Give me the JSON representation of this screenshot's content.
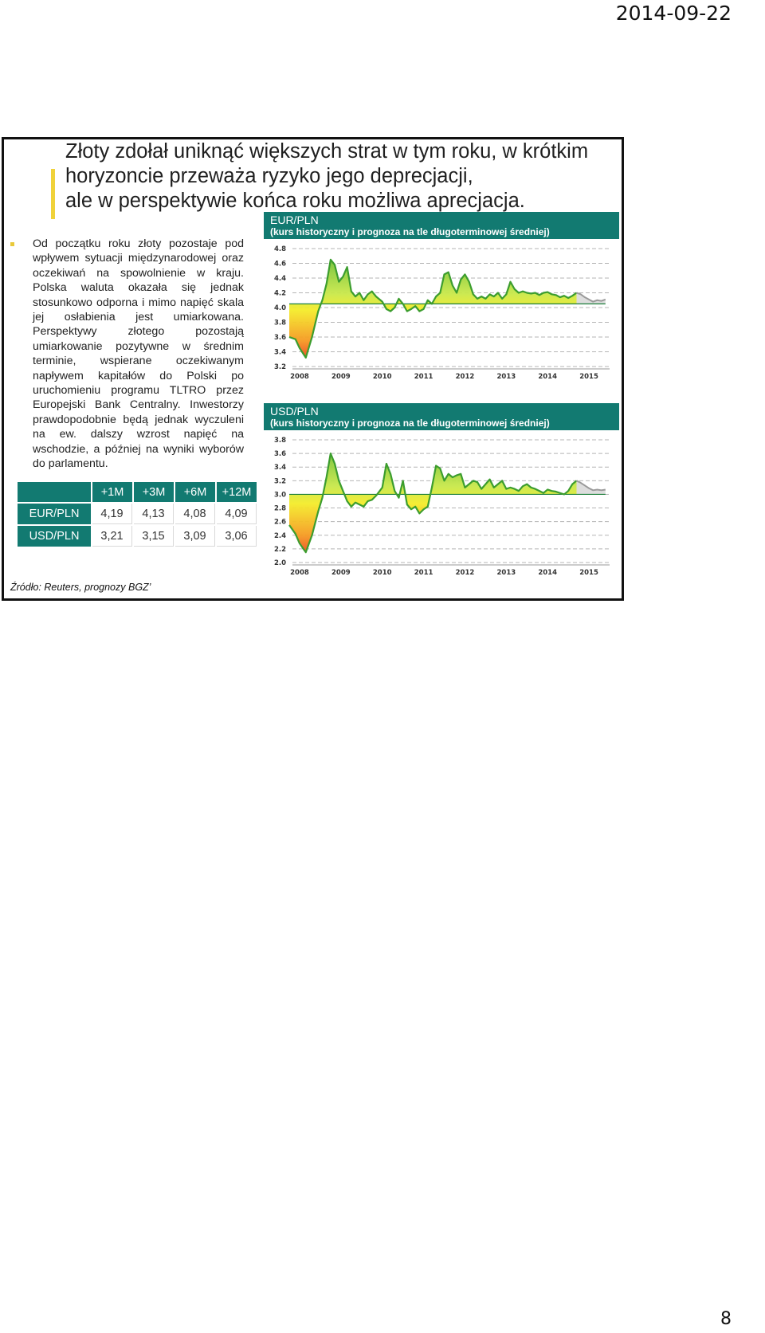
{
  "page": {
    "date": "2014-09-22",
    "number": "8"
  },
  "slide": {
    "title_lines": [
      "Złoty zdołał uniknąć większych strat  w tym roku, w krótkim",
      "horyzoncie przeważa ryzyko jego deprecjacji,",
      "ale w perspektywie końca roku możliwa aprecjacja."
    ],
    "body": "Od początku roku złoty pozostaje pod wpływem sytuacji międzynarodowej oraz oczekiwań na spowolnienie w kraju. Polska waluta okazała się jednak stosunkowo odporna i mimo napięć skala jej osłabienia jest umiarkowana. Perspektywy złotego pozostają umiarkowanie pozytywne w średnim terminie, wspierane oczekiwanym napływem kapitałów do Polski po uruchomieniu programu TLTRO przez Europejski Bank Centralny. Inwestorzy prawdopodobnie będą jednak wyczuleni na ew. dalszy wzrost napięć na wschodzie, a później na wyniki wyborów do parlamentu.",
    "source": "Źródło: Reuters, prognozy BGZ’"
  },
  "forecast_table": {
    "columns": [
      "+1M",
      "+3M",
      "+6M",
      "+12M"
    ],
    "rows": [
      {
        "label": "EUR/PLN",
        "values": [
          "4,19",
          "4,13",
          "4,08",
          "4,09"
        ]
      },
      {
        "label": "USD/PLN",
        "values": [
          "3,21",
          "3,15",
          "3,09",
          "3,06"
        ]
      }
    ]
  },
  "colors": {
    "accent": "#127a71",
    "title_bar": "#f0d23a",
    "line": "#3c9d2e",
    "forecast_line": "#9a9a9a",
    "fill_high": "#5ab532",
    "fill_low": "#e8231f",
    "fill_mid": "#f4ec2a"
  },
  "chart_data": [
    {
      "type": "area",
      "title": "EUR/PLN",
      "subtitle": "(kurs historyczny i prognoza na tle długoterminowej średniej)",
      "x_ticks": [
        "2008",
        "2009",
        "2010",
        "2011",
        "2012",
        "2013",
        "2014",
        "2015"
      ],
      "yticks": [
        "4.8",
        "4.6",
        "4.4",
        "4.2",
        "4.0",
        "3.8",
        "3.6",
        "3.4",
        "3.2"
      ],
      "ylim": [
        3.2,
        4.8
      ],
      "xlim": [
        2007.75,
        2015.5
      ],
      "average": 4.05,
      "grid": true,
      "series": [
        {
          "kind": "historical",
          "x": [
            2007.75,
            2007.9,
            2008.0,
            2008.15,
            2008.3,
            2008.45,
            2008.55,
            2008.65,
            2008.75,
            2008.85,
            2008.95,
            2009.05,
            2009.15,
            2009.25,
            2009.35,
            2009.45,
            2009.55,
            2009.65,
            2009.75,
            2009.85,
            2010.0,
            2010.1,
            2010.2,
            2010.3,
            2010.4,
            2010.5,
            2010.6,
            2010.7,
            2010.8,
            2010.9,
            2011.0,
            2011.1,
            2011.2,
            2011.3,
            2011.4,
            2011.5,
            2011.6,
            2011.7,
            2011.8,
            2011.9,
            2012.0,
            2012.1,
            2012.2,
            2012.3,
            2012.4,
            2012.5,
            2012.6,
            2012.7,
            2012.8,
            2012.9,
            2013.0,
            2013.1,
            2013.2,
            2013.3,
            2013.4,
            2013.5,
            2013.6,
            2013.7,
            2013.8,
            2013.9,
            2014.0,
            2014.1,
            2014.2,
            2014.3,
            2014.4,
            2014.5,
            2014.6,
            2014.7
          ],
          "y": [
            3.6,
            3.57,
            3.45,
            3.32,
            3.6,
            3.95,
            4.1,
            4.32,
            4.65,
            4.58,
            4.35,
            4.42,
            4.55,
            4.22,
            4.15,
            4.2,
            4.1,
            4.18,
            4.22,
            4.15,
            4.08,
            3.98,
            3.95,
            4.0,
            4.12,
            4.05,
            3.95,
            3.98,
            4.02,
            3.95,
            3.98,
            4.1,
            4.05,
            4.15,
            4.2,
            4.45,
            4.48,
            4.3,
            4.2,
            4.38,
            4.45,
            4.35,
            4.18,
            4.12,
            4.15,
            4.12,
            4.18,
            4.15,
            4.2,
            4.12,
            4.18,
            4.35,
            4.25,
            4.2,
            4.22,
            4.2,
            4.19,
            4.2,
            4.17,
            4.2,
            4.21,
            4.18,
            4.17,
            4.14,
            4.16,
            4.13,
            4.16,
            4.2
          ]
        },
        {
          "kind": "forecast",
          "x": [
            2014.7,
            2014.8,
            2014.9,
            2015.0,
            2015.1,
            2015.2,
            2015.3,
            2015.4
          ],
          "y": [
            4.2,
            4.18,
            4.14,
            4.11,
            4.08,
            4.1,
            4.09,
            4.11
          ]
        }
      ]
    },
    {
      "type": "area",
      "title": "USD/PLN",
      "subtitle": "(kurs historyczny i prognoza na tle długoterminowej średniej)",
      "x_ticks": [
        "2008",
        "2009",
        "2010",
        "2011",
        "2012",
        "2013",
        "2014",
        "2015"
      ],
      "yticks": [
        "3.8",
        "3.6",
        "3.4",
        "3.2",
        "3.0",
        "2.8",
        "2.6",
        "2.4",
        "2.2",
        "2.0"
      ],
      "ylim": [
        2.0,
        3.8
      ],
      "xlim": [
        2007.75,
        2015.5
      ],
      "average": 3.0,
      "grid": true,
      "series": [
        {
          "kind": "historical",
          "x": [
            2007.75,
            2007.9,
            2008.0,
            2008.15,
            2008.3,
            2008.45,
            2008.55,
            2008.65,
            2008.75,
            2008.85,
            2008.95,
            2009.05,
            2009.15,
            2009.25,
            2009.35,
            2009.45,
            2009.55,
            2009.65,
            2009.75,
            2009.85,
            2010.0,
            2010.1,
            2010.2,
            2010.3,
            2010.4,
            2010.5,
            2010.6,
            2010.7,
            2010.8,
            2010.9,
            2011.0,
            2011.1,
            2011.2,
            2011.3,
            2011.4,
            2011.5,
            2011.6,
            2011.7,
            2011.8,
            2011.9,
            2012.0,
            2012.1,
            2012.2,
            2012.3,
            2012.4,
            2012.5,
            2012.6,
            2012.7,
            2012.8,
            2012.9,
            2013.0,
            2013.1,
            2013.2,
            2013.3,
            2013.4,
            2013.5,
            2013.6,
            2013.7,
            2013.8,
            2013.9,
            2014.0,
            2014.1,
            2014.2,
            2014.3,
            2014.4,
            2014.5,
            2014.6,
            2014.7
          ],
          "y": [
            2.55,
            2.42,
            2.28,
            2.15,
            2.4,
            2.75,
            2.95,
            3.25,
            3.6,
            3.45,
            3.2,
            3.05,
            2.9,
            2.82,
            2.88,
            2.85,
            2.82,
            2.9,
            2.92,
            2.98,
            3.1,
            3.45,
            3.3,
            3.05,
            2.95,
            3.2,
            2.85,
            2.78,
            2.82,
            2.72,
            2.78,
            2.82,
            3.1,
            3.42,
            3.38,
            3.2,
            3.3,
            3.25,
            3.28,
            3.3,
            3.1,
            3.15,
            3.2,
            3.18,
            3.08,
            3.15,
            3.22,
            3.1,
            3.15,
            3.2,
            3.08,
            3.1,
            3.08,
            3.05,
            3.12,
            3.15,
            3.1,
            3.08,
            3.05,
            3.02,
            3.07,
            3.05,
            3.04,
            3.02,
            3.0,
            3.05,
            3.15,
            3.2
          ]
        },
        {
          "kind": "forecast",
          "x": [
            2014.7,
            2014.8,
            2014.9,
            2015.0,
            2015.1,
            2015.2,
            2015.3,
            2015.4
          ],
          "y": [
            3.2,
            3.17,
            3.13,
            3.09,
            3.06,
            3.07,
            3.06,
            3.07
          ]
        }
      ]
    }
  ]
}
